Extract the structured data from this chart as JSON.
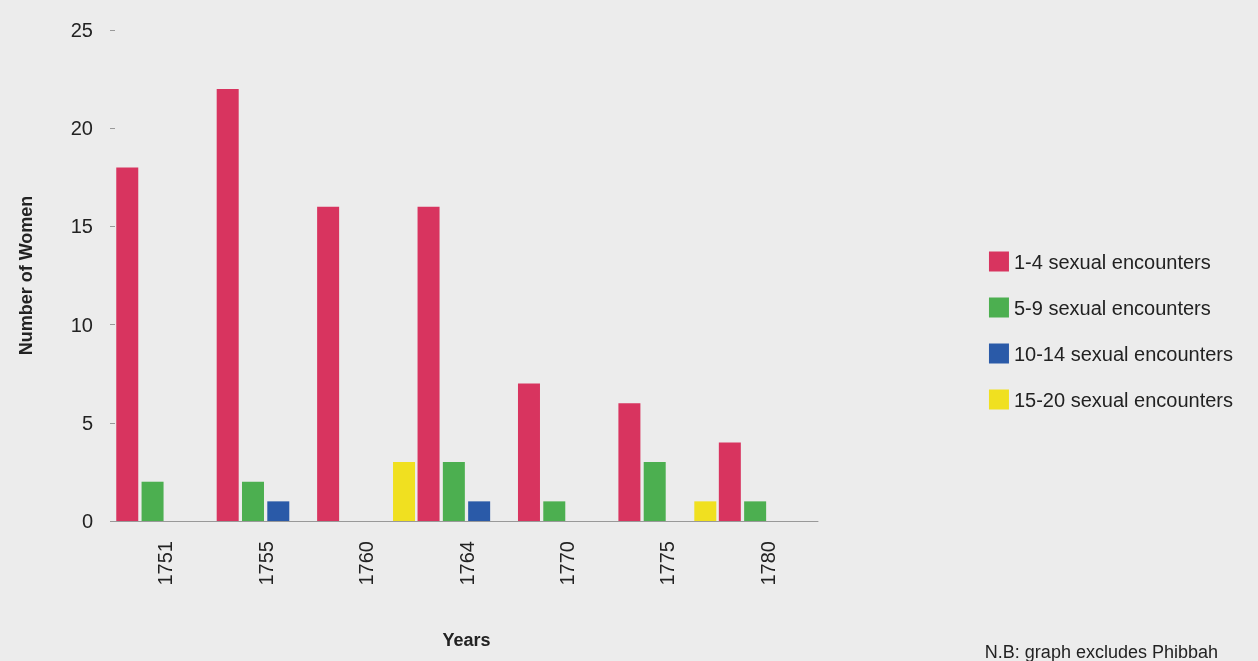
{
  "chart_data": {
    "type": "bar",
    "xlabel": "Years",
    "ylabel": "Number of Women",
    "categories": [
      "1751",
      "1755",
      "1760",
      "1764",
      "1770",
      "1775",
      "1780"
    ],
    "series": [
      {
        "name": "1-4 sexual encounters",
        "color": "#d8345f",
        "values": [
          18,
          22,
          16,
          16,
          7,
          6,
          4
        ]
      },
      {
        "name": "5-9 sexual encounters",
        "color": "#4caf50",
        "values": [
          2,
          2,
          0,
          3,
          1,
          3,
          1
        ]
      },
      {
        "name": "10-14 sexual encounters",
        "color": "#2a5aa8",
        "values": [
          0,
          1,
          0,
          1,
          0,
          0,
          0
        ]
      },
      {
        "name": "15-20 sexual encounters",
        "color": "#f0e020",
        "values": [
          0,
          0,
          3,
          0,
          0,
          1,
          0
        ]
      }
    ],
    "ylim": [
      0,
      25
    ],
    "yticks": [
      0,
      5,
      10,
      15,
      20,
      25
    ],
    "grid": false,
    "legend": "right",
    "annotations": [
      "N.B: graph excludes Phibbah"
    ]
  }
}
